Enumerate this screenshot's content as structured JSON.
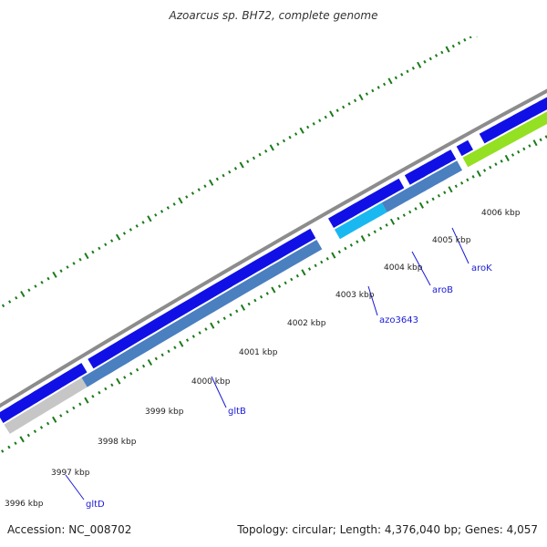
{
  "header": {
    "title": "Azoarcus sp. BH72, complete genome"
  },
  "footer": {
    "accession": "Accession: NC_008702",
    "summary": "Topology: circular; Length: 4,376,040 bp; Genes: 4,057"
  },
  "colors": {
    "backbone": "#8c8c8c",
    "cds_forward": "#1010e6",
    "cds_reverse": "#4a7fc0",
    "gc_skew_light": "#c6c6c6",
    "cyan_feature": "#19b8f0",
    "green_feature": "#94e022",
    "tick": "#1a7a1a",
    "gene_label": "#1a1ad8"
  },
  "scale_labels": [
    "3996 kbp",
    "3997 kbp",
    "3998 kbp",
    "3999 kbp",
    "4000 kbp",
    "4001 kbp",
    "4002 kbp",
    "4003 kbp",
    "4004 kbp",
    "4005 kbp",
    "4006 kbp"
  ],
  "gene_labels": [
    "gltD",
    "gltB",
    "azo3643",
    "aroB",
    "aroK"
  ]
}
